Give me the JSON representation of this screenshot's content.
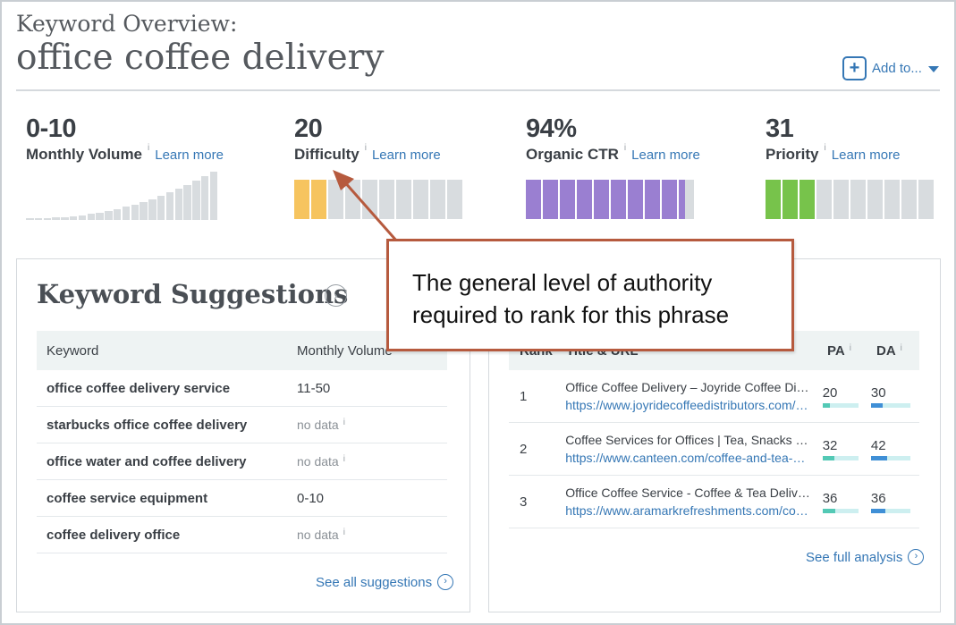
{
  "header": {
    "title_prefix": "Keyword Overview:",
    "keyword": "office coffee delivery",
    "add_to": {
      "icon": "plus-box-icon",
      "label": "Add to..."
    }
  },
  "metrics": [
    {
      "id": "monthly-volume",
      "value": "0-10",
      "label": "Monthly Volume",
      "info": "i",
      "learn_more": "Learn more"
    },
    {
      "id": "difficulty",
      "value": "20",
      "label": "Difficulty",
      "info": "i",
      "learn_more": "Learn more"
    },
    {
      "id": "organic-ctr",
      "value": "94%",
      "label": "Organic CTR",
      "info": "i",
      "learn_more": "Learn more"
    },
    {
      "id": "priority",
      "value": "31",
      "label": "Priority",
      "info": "i",
      "learn_more": "Learn more"
    }
  ],
  "meters": {
    "difficulty": {
      "segments": 10,
      "filled": 2,
      "color": "#f6c45f"
    },
    "organic_ctr": {
      "segments": 10,
      "filled": 9.4,
      "color": "#9a7fd1"
    },
    "priority": {
      "segments": 10,
      "filled": 3,
      "color": "#77c34b"
    }
  },
  "volume_chart": {
    "bar_count": 22,
    "highlight_color": "#d8dcdf"
  },
  "keyword_suggestions": {
    "title": "Keyword Suggestions",
    "columns": [
      "Keyword",
      "Monthly Volume"
    ],
    "rows": [
      {
        "keyword": "office coffee delivery service",
        "volume": "11-50",
        "no_data": false
      },
      {
        "keyword": "starbucks office coffee delivery",
        "volume": "no data",
        "no_data": true
      },
      {
        "keyword": "office water and coffee delivery",
        "volume": "no data",
        "no_data": true
      },
      {
        "keyword": "coffee service equipment",
        "volume": "0-10",
        "no_data": false
      },
      {
        "keyword": "coffee delivery office",
        "volume": "no data",
        "no_data": true
      }
    ],
    "info": "i",
    "see_all": "See all suggestions"
  },
  "serp": {
    "columns": {
      "rank": "Rank",
      "title": "Title & URL",
      "pa": "PA",
      "da": "DA"
    },
    "info": "i",
    "rows": [
      {
        "rank": "1",
        "title": "Office Coffee Delivery – Joyride Coffee Distributors",
        "url": "https://www.joyridecoffeedistributors.com/office-coffee",
        "pa": 20,
        "da": 30
      },
      {
        "rank": "2",
        "title": "Coffee Services for Offices | Tea, Snacks & More",
        "url": "https://www.canteen.com/coffee-and-tea-services",
        "pa": 32,
        "da": 42
      },
      {
        "rank": "3",
        "title": "Office Coffee Service - Coffee & Tea Delivery",
        "url": "https://www.aramarkrefreshments.com/coffee",
        "pa": 36,
        "da": 36
      }
    ],
    "see_full": "See full analysis"
  },
  "callout": {
    "line1": "The general level of authority",
    "line2": "required to rank for this phrase",
    "border_color": "#b65a3e"
  }
}
